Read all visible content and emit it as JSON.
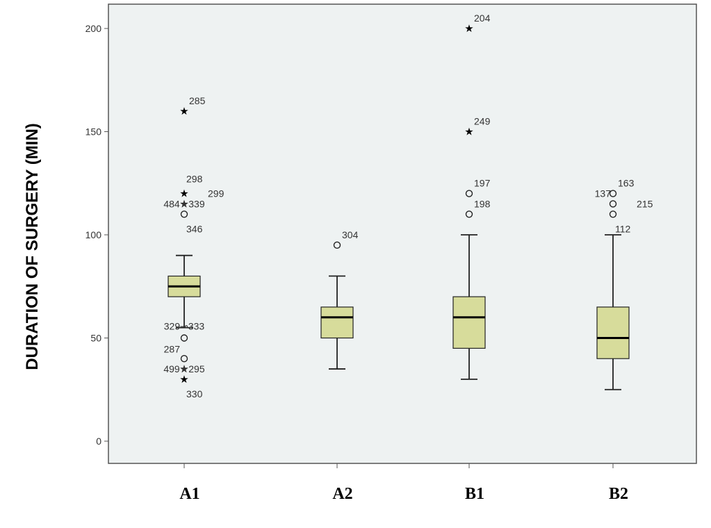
{
  "chart_data": {
    "type": "box",
    "xlabel": "",
    "ylabel": "DURATION OF SURGERY (MIN)",
    "ylim": [
      -10,
      212
    ],
    "yticks": [
      0,
      50,
      100,
      150,
      200
    ],
    "grid": false,
    "colors": {
      "box_fill": "#d7dc9b",
      "plot_bg": "#eef2f2",
      "frame": "#555555",
      "stroke": "#222222"
    },
    "categories": [
      "A1",
      "A2",
      "B1",
      "B2"
    ],
    "boxes": [
      {
        "category": "A1",
        "whisker_low": 55,
        "q1": 70,
        "median": 75,
        "q3": 80,
        "whisker_high": 90,
        "outliers": [
          {
            "value": 160,
            "marker": "star",
            "labels": [
              {
                "text": "285",
                "side": "right"
              }
            ]
          },
          {
            "value": 120,
            "marker": "star",
            "labels": [
              {
                "text": "298",
                "side": "right-above"
              },
              {
                "text": "299",
                "side": "far-right"
              }
            ]
          },
          {
            "value": 115,
            "marker": "star",
            "labels": [
              {
                "text": "484★339",
                "side": "center"
              }
            ]
          },
          {
            "value": 110,
            "marker": "circle",
            "labels": [
              {
                "text": "346",
                "side": "right-below"
              }
            ]
          },
          {
            "value": 50,
            "marker": "circle",
            "labels": [
              {
                "text": "329⊸333",
                "side": "center-above"
              },
              {
                "text": "287",
                "side": "left-below"
              }
            ]
          },
          {
            "value": 40,
            "marker": "circle",
            "labels": []
          },
          {
            "value": 35,
            "marker": "star",
            "labels": [
              {
                "text": "499★295",
                "side": "center"
              }
            ]
          },
          {
            "value": 30,
            "marker": "star",
            "labels": [
              {
                "text": "330",
                "side": "right-below"
              }
            ]
          }
        ]
      },
      {
        "category": "A2",
        "whisker_low": 35,
        "q1": 50,
        "median": 60,
        "q3": 65,
        "whisker_high": 80,
        "outliers": [
          {
            "value": 95,
            "marker": "circle",
            "labels": [
              {
                "text": "304",
                "side": "right"
              }
            ]
          }
        ]
      },
      {
        "category": "B1",
        "whisker_low": 30,
        "q1": 45,
        "median": 60,
        "q3": 70,
        "whisker_high": 100,
        "outliers": [
          {
            "value": 200,
            "marker": "star",
            "labels": [
              {
                "text": "204",
                "side": "right"
              }
            ]
          },
          {
            "value": 150,
            "marker": "star",
            "labels": [
              {
                "text": "249",
                "side": "right"
              }
            ]
          },
          {
            "value": 120,
            "marker": "circle",
            "labels": [
              {
                "text": "197",
                "side": "right"
              }
            ]
          },
          {
            "value": 110,
            "marker": "circle",
            "labels": [
              {
                "text": "198",
                "side": "right"
              }
            ]
          }
        ]
      },
      {
        "category": "B2",
        "whisker_low": 25,
        "q1": 40,
        "median": 50,
        "q3": 65,
        "whisker_high": 100,
        "outliers": [
          {
            "value": 120,
            "marker": "circle",
            "labels": [
              {
                "text": "163",
                "side": "right"
              },
              {
                "text": "137",
                "side": "left"
              }
            ]
          },
          {
            "value": 115,
            "marker": "circle",
            "labels": [
              {
                "text": "215",
                "side": "far-right"
              }
            ]
          },
          {
            "value": 110,
            "marker": "circle",
            "labels": [
              {
                "text": "112",
                "side": "right-below"
              }
            ]
          }
        ]
      }
    ]
  }
}
